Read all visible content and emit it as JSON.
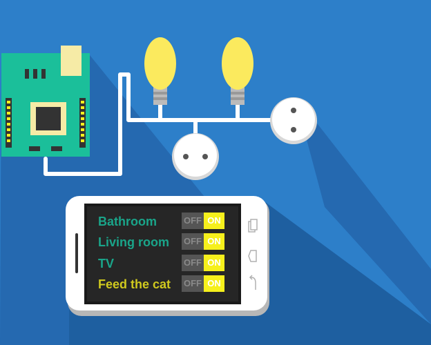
{
  "colors": {
    "background": "#2d7fc9",
    "shadow": "#1e5fa0",
    "board": "#1bbf9a",
    "on": "#f6f01c",
    "off": "#555555",
    "label_teal": "#1aa58a",
    "label_yellow": "#d0c91e"
  },
  "phone": {
    "rows": [
      {
        "label": "Bathroom",
        "off": "OFF",
        "on": "ON"
      },
      {
        "label": "Living room",
        "off": "OFF",
        "on": "ON"
      },
      {
        "label": "TV",
        "off": "OFF",
        "on": "ON"
      },
      {
        "label": "Feed the cat",
        "off": "OFF",
        "on": "ON"
      }
    ],
    "icons": [
      "recent-apps-icon",
      "home-icon",
      "back-icon"
    ]
  }
}
